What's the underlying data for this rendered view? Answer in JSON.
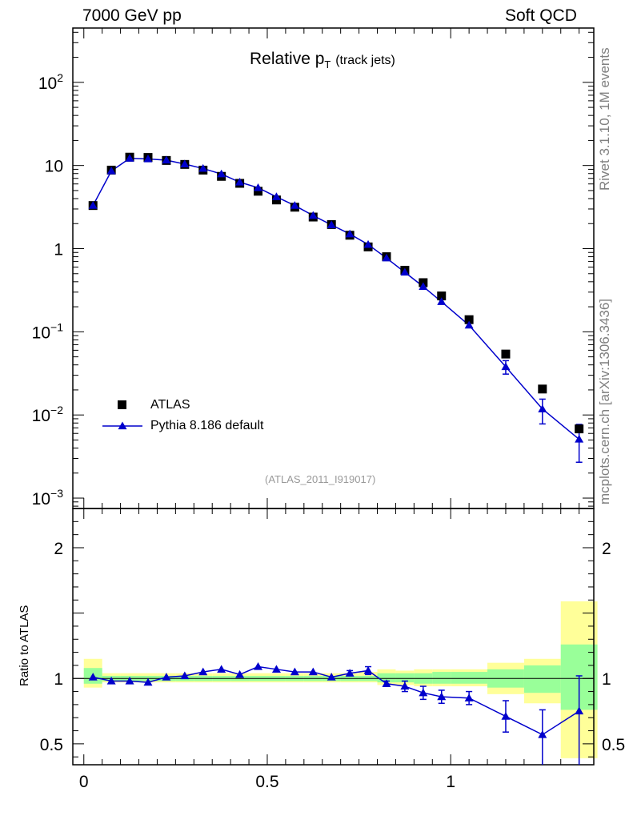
{
  "header": {
    "left": "7000 GeV pp",
    "right": "Soft QCD"
  },
  "side_text": {
    "top": "Rivet 3.1.10,  1M events",
    "bottom": "mcplots.cern.ch [arXiv:1306.3436]"
  },
  "plot_title": {
    "main": "Relative p",
    "sub": "T",
    "suffix": "(track jets)"
  },
  "analysis_tag": "(ATLAS_2011_I919017)",
  "colors": {
    "mc": "#0000cc",
    "data": "#000000",
    "band_inner": "#99ff99",
    "band_outer": "#ffff99"
  },
  "chart_data": [
    {
      "type": "scatter",
      "title": "Relative pT (track jets)",
      "yscale": "log",
      "xlim": [
        -0.03,
        1.39
      ],
      "ylim": [
        0.00075,
        450
      ],
      "y_ticks": [
        {
          "v": 0.001,
          "base": "10",
          "exp": "−3"
        },
        {
          "v": 0.01,
          "base": "10",
          "exp": "−2"
        },
        {
          "v": 0.1,
          "base": "10",
          "exp": "−1"
        },
        {
          "v": 1,
          "base": "1",
          "exp": ""
        },
        {
          "v": 10,
          "base": "10",
          "exp": ""
        },
        {
          "v": 100,
          "base": "10",
          "exp": "2"
        }
      ],
      "legend": {
        "position": "lower-left",
        "entries": [
          "ATLAS",
          "Pythia 8.186 default"
        ]
      },
      "x": [
        0.025,
        0.075,
        0.125,
        0.175,
        0.225,
        0.275,
        0.325,
        0.375,
        0.425,
        0.475,
        0.525,
        0.575,
        0.625,
        0.675,
        0.725,
        0.775,
        0.825,
        0.875,
        0.925,
        0.975,
        1.05,
        1.15,
        1.25,
        1.35
      ],
      "series": [
        {
          "name": "ATLAS",
          "marker": "square",
          "values": [
            3.3,
            8.8,
            12.6,
            12.5,
            11.5,
            10.3,
            8.8,
            7.4,
            6.1,
            4.9,
            3.85,
            3.15,
            2.4,
            1.95,
            1.45,
            1.05,
            0.8,
            0.55,
            0.39,
            0.27,
            0.14,
            0.054,
            0.0205,
            0.0068
          ]
        },
        {
          "name": "Pythia 8.186 default",
          "marker": "triangle",
          "values": [
            3.3,
            8.6,
            12.2,
            12.0,
            11.6,
            10.4,
            9.2,
            7.9,
            6.3,
            5.4,
            4.2,
            3.3,
            2.5,
            1.93,
            1.5,
            1.12,
            0.77,
            0.52,
            0.35,
            0.23,
            0.12,
            0.038,
            0.0118,
            0.0051
          ],
          "err_lo": [
            3.3,
            8.6,
            12.2,
            12.0,
            11.6,
            10.4,
            9.2,
            7.9,
            6.3,
            5.4,
            4.2,
            3.3,
            2.5,
            1.93,
            1.5,
            1.12,
            0.77,
            0.52,
            0.35,
            0.23,
            0.12,
            0.031,
            0.0078,
            0.0027
          ],
          "err_hi": [
            3.3,
            8.6,
            12.2,
            12.0,
            11.6,
            10.4,
            9.2,
            7.9,
            6.3,
            5.4,
            4.2,
            3.3,
            2.5,
            1.93,
            1.5,
            1.12,
            0.77,
            0.52,
            0.35,
            0.23,
            0.12,
            0.045,
            0.0155,
            0.0077
          ]
        }
      ]
    },
    {
      "type": "line",
      "ylabel": "Ratio to ATLAS",
      "xlim": [
        -0.03,
        1.39
      ],
      "ylim": [
        0.34,
        2.3
      ],
      "x_ticks": [
        {
          "v": 0,
          "label": "0"
        },
        {
          "v": 0.5,
          "label": "0.5"
        },
        {
          "v": 1,
          "label": "1"
        }
      ],
      "y_ticks": [
        {
          "v": 0.5,
          "label": "0.5"
        },
        {
          "v": 1,
          "label": "1"
        },
        {
          "v": 2,
          "label": "2"
        }
      ],
      "bin_edges": [
        0.0,
        0.05,
        0.1,
        0.15,
        0.2,
        0.25,
        0.3,
        0.35,
        0.4,
        0.45,
        0.5,
        0.55,
        0.6,
        0.65,
        0.7,
        0.75,
        0.8,
        0.85,
        0.9,
        0.95,
        1.0,
        1.1,
        1.2,
        1.3,
        1.4
      ],
      "band_inner": [
        [
          0.96,
          1.08
        ],
        [
          0.98,
          1.02
        ],
        [
          0.98,
          1.02
        ],
        [
          0.98,
          1.02
        ],
        [
          0.98,
          1.02
        ],
        [
          0.98,
          1.02
        ],
        [
          0.98,
          1.02
        ],
        [
          0.98,
          1.02
        ],
        [
          0.98,
          1.02
        ],
        [
          0.98,
          1.02
        ],
        [
          0.98,
          1.02
        ],
        [
          0.98,
          1.02
        ],
        [
          0.98,
          1.02
        ],
        [
          0.98,
          1.02
        ],
        [
          0.98,
          1.02
        ],
        [
          0.98,
          1.02
        ],
        [
          0.97,
          1.04
        ],
        [
          0.97,
          1.04
        ],
        [
          0.96,
          1.04
        ],
        [
          0.96,
          1.05
        ],
        [
          0.96,
          1.05
        ],
        [
          0.93,
          1.07
        ],
        [
          0.89,
          1.1
        ],
        [
          0.76,
          1.26
        ]
      ],
      "band_outer": [
        [
          0.93,
          1.15
        ],
        [
          0.97,
          1.04
        ],
        [
          0.97,
          1.04
        ],
        [
          0.97,
          1.04
        ],
        [
          0.97,
          1.04
        ],
        [
          0.97,
          1.04
        ],
        [
          0.97,
          1.04
        ],
        [
          0.97,
          1.04
        ],
        [
          0.97,
          1.04
        ],
        [
          0.97,
          1.04
        ],
        [
          0.97,
          1.04
        ],
        [
          0.97,
          1.04
        ],
        [
          0.97,
          1.04
        ],
        [
          0.97,
          1.04
        ],
        [
          0.97,
          1.04
        ],
        [
          0.97,
          1.05
        ],
        [
          0.95,
          1.07
        ],
        [
          0.95,
          1.06
        ],
        [
          0.94,
          1.07
        ],
        [
          0.94,
          1.07
        ],
        [
          0.94,
          1.07
        ],
        [
          0.88,
          1.12
        ],
        [
          0.81,
          1.15
        ],
        [
          0.39,
          1.59
        ]
      ],
      "ratio": {
        "x": [
          0.025,
          0.075,
          0.125,
          0.175,
          0.225,
          0.275,
          0.325,
          0.375,
          0.425,
          0.475,
          0.525,
          0.575,
          0.625,
          0.675,
          0.725,
          0.775,
          0.825,
          0.875,
          0.925,
          0.975,
          1.05,
          1.15,
          1.25,
          1.35
        ],
        "values": [
          1.01,
          0.98,
          0.98,
          0.97,
          1.01,
          1.02,
          1.05,
          1.07,
          1.03,
          1.09,
          1.07,
          1.05,
          1.05,
          1.01,
          1.04,
          1.06,
          0.96,
          0.94,
          0.89,
          0.86,
          0.85,
          0.71,
          0.57,
          0.75
        ],
        "err_lo": [
          1.01,
          0.98,
          0.98,
          0.97,
          1.01,
          1.02,
          1.05,
          1.07,
          1.03,
          1.09,
          1.07,
          1.05,
          1.05,
          1.01,
          1.02,
          1.03,
          0.94,
          0.9,
          0.84,
          0.81,
          0.8,
          0.59,
          0.34,
          0.34
        ],
        "err_hi": [
          1.01,
          0.98,
          0.98,
          0.97,
          1.01,
          1.02,
          1.05,
          1.07,
          1.03,
          1.09,
          1.07,
          1.05,
          1.05,
          1.01,
          1.06,
          1.09,
          0.98,
          0.98,
          0.94,
          0.91,
          0.9,
          0.83,
          0.76,
          1.02
        ]
      }
    }
  ]
}
